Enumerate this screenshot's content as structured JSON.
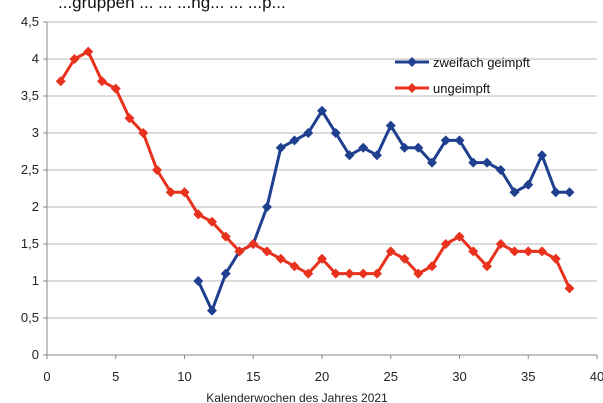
{
  "chart_data": {
    "type": "line",
    "title": "...gruppen ... ... ...ng... ... ...p...",
    "xlabel": "Kalenderwochen des Jahres 2021",
    "ylabel": "",
    "xlim": [
      0,
      40
    ],
    "ylim": [
      0,
      4.5
    ],
    "x_ticks": [
      0,
      5,
      10,
      15,
      20,
      25,
      30,
      35,
      40
    ],
    "y_ticks": [
      0,
      0.5,
      1,
      1.5,
      2,
      2.5,
      3,
      3.5,
      4,
      4.5
    ],
    "x_tick_labels": [
      "0",
      "5",
      "10",
      "15",
      "20",
      "25",
      "30",
      "35",
      "40"
    ],
    "y_tick_labels": [
      "0",
      "0,5",
      "1",
      "1,5",
      "2",
      "2,5",
      "3",
      "3,5",
      "4",
      "4,5"
    ],
    "grid": "horizontal",
    "legend_position": "top-right",
    "series": [
      {
        "name": "zweifach geimpft",
        "color": "#1f3f8f",
        "marker": "diamond",
        "x": [
          11,
          12,
          13,
          14,
          15,
          16,
          17,
          18,
          19,
          20,
          21,
          22,
          23,
          24,
          25,
          26,
          27,
          28,
          29,
          30,
          31,
          32,
          33,
          34,
          35,
          36,
          37,
          38
        ],
        "values": [
          1.0,
          0.6,
          1.1,
          1.4,
          1.5,
          2.0,
          2.8,
          2.9,
          3.0,
          3.3,
          3.0,
          2.7,
          2.8,
          2.7,
          3.1,
          2.8,
          2.8,
          2.6,
          2.9,
          2.9,
          2.6,
          2.6,
          2.5,
          2.2,
          2.3,
          2.7,
          2.2,
          2.2
        ]
      },
      {
        "name": "ungeimpft",
        "color": "#e8321e",
        "marker": "diamond",
        "x": [
          1,
          2,
          3,
          4,
          5,
          6,
          7,
          8,
          9,
          10,
          11,
          12,
          13,
          14,
          15,
          16,
          17,
          18,
          19,
          20,
          21,
          22,
          23,
          24,
          25,
          26,
          27,
          28,
          29,
          30,
          31,
          32,
          33,
          34,
          35,
          36,
          37,
          38
        ],
        "values": [
          3.7,
          4.0,
          4.1,
          3.7,
          3.6,
          3.2,
          3.0,
          2.5,
          2.2,
          2.2,
          1.9,
          1.8,
          1.6,
          1.4,
          1.5,
          1.4,
          1.3,
          1.2,
          1.1,
          1.3,
          1.1,
          1.1,
          1.1,
          1.1,
          1.4,
          1.3,
          1.1,
          1.2,
          1.5,
          1.6,
          1.4,
          1.2,
          1.5,
          1.4,
          1.4,
          1.4,
          1.3,
          0.9
        ]
      }
    ]
  }
}
